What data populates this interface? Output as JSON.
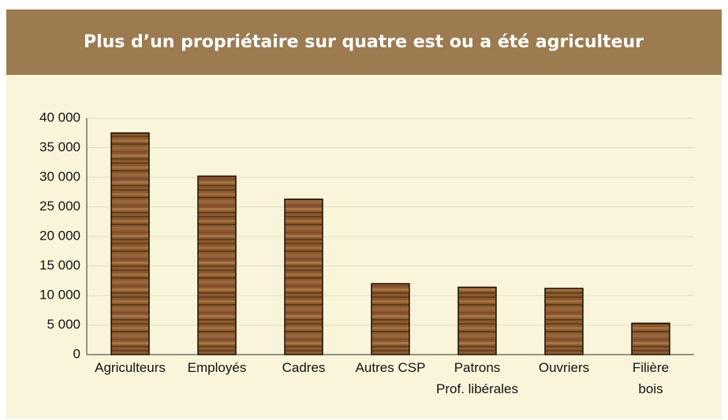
{
  "chart_data": {
    "type": "bar",
    "title": "Plus d’un propriétaire sur quatre est ou a été agriculteur",
    "categories": [
      "Agriculteurs",
      "Employés",
      "Cadres",
      "Autres CSP",
      "Patrons\nProf. libérales",
      "Ouvriers",
      "Filière\nbois"
    ],
    "values": [
      37500,
      30200,
      26300,
      12000,
      11400,
      11200,
      5300
    ],
    "color": "#8a5a2e",
    "ylim": [
      0,
      40000
    ],
    "yticks": [
      0,
      {
        "value": 5000,
        "label": "5 000"
      },
      {
        "value": 10000,
        "label": "10 000"
      },
      {
        "value": 15000,
        "label": "15 000"
      },
      {
        "value": 20000,
        "label": "20 000"
      },
      {
        "value": 25000,
        "label": "25 000"
      },
      {
        "value": 30000,
        "label": "30 000"
      },
      {
        "value": 35000,
        "label": "35 000"
      },
      {
        "value": 40000,
        "label": "40 000"
      }
    ],
    "grid": true
  }
}
